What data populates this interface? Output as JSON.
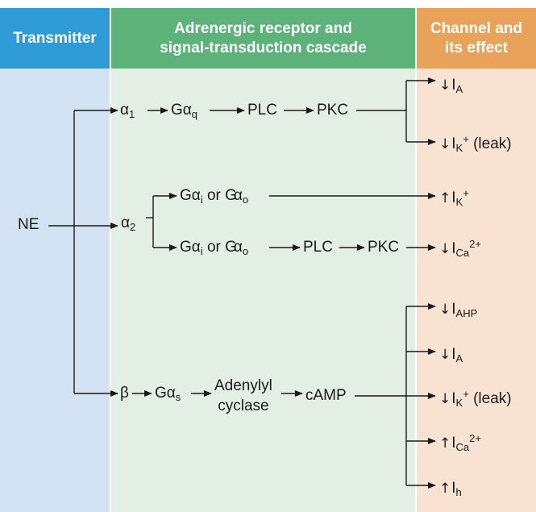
{
  "headers": {
    "transmitter": "Transmitter",
    "cascade_line1": "Adrenergic receptor and",
    "cascade_line2": "signal-transduction cascade",
    "channel_line1": "Channel and",
    "channel_line2": "its effect"
  },
  "colors": {
    "transmitter_header": "#2e9bd6",
    "transmitter_bg": "#d3e3f3",
    "cascade_header": "#5db27a",
    "cascade_bg": "#e3efe4",
    "channel_header": "#e8a25a",
    "channel_bg": "#f8e3d2",
    "line": "#1a1a1a"
  },
  "nodes": {
    "ne": "NE",
    "alpha": "α",
    "beta": "β",
    "g": "G",
    "or": "or",
    "plc": "PLC",
    "pkc": "PKC",
    "adenylyl": "Adenylyl",
    "cyclase": "cyclase",
    "camp": "cAMP"
  },
  "subs": {
    "one": "1",
    "two": "2",
    "q": "q",
    "i": "i",
    "o": "o",
    "s": "s"
  },
  "effects": {
    "down_arrow": "↓",
    "up_arrow": "↑",
    "current": "I",
    "a": "A",
    "k": "K",
    "plus": "+",
    "leak": "(leak)",
    "ca": "Ca",
    "two_plus": "2+",
    "ahp": "AHP",
    "h": "h"
  }
}
